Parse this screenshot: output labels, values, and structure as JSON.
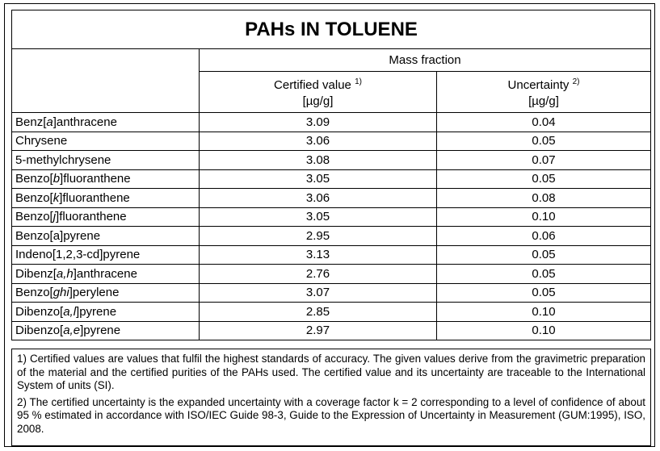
{
  "title": "PAHs IN TOLUENE",
  "header": {
    "group": "Mass fraction",
    "columns": [
      {
        "label": "Certified value",
        "note": "1)",
        "unit": "[µg/g]"
      },
      {
        "label": "Uncertainty",
        "note": "2)",
        "unit": "[µg/g]"
      }
    ]
  },
  "rows": [
    {
      "name": [
        "Benz[",
        "a",
        "]anthracene"
      ],
      "certified": "3.09",
      "uncertainty": "0.04"
    },
    {
      "name": [
        "Chrysene"
      ],
      "certified": "3.06",
      "uncertainty": "0.05"
    },
    {
      "name": [
        "5-methylchrysene"
      ],
      "certified": "3.08",
      "uncertainty": "0.07"
    },
    {
      "name": [
        "Benzo[",
        "b",
        "]fluoranthene"
      ],
      "certified": "3.05",
      "uncertainty": "0.05"
    },
    {
      "name": [
        "Benzo[",
        "k",
        "]fluoranthene"
      ],
      "certified": "3.06",
      "uncertainty": "0.08"
    },
    {
      "name": [
        "Benzo[",
        "j",
        "]fluoranthene"
      ],
      "certified": "3.05",
      "uncertainty": "0.10"
    },
    {
      "name": [
        "Benzo[a]pyrene"
      ],
      "certified": "2.95",
      "uncertainty": "0.06"
    },
    {
      "name": [
        "Indeno[1,2,3-cd]pyrene"
      ],
      "certified": "3.13",
      "uncertainty": "0.05"
    },
    {
      "name": [
        "Dibenz[",
        "a,h",
        "]anthracene"
      ],
      "certified": "2.76",
      "uncertainty": "0.05"
    },
    {
      "name": [
        "Benzo[",
        "ghi",
        "]perylene"
      ],
      "certified": "3.07",
      "uncertainty": "0.05"
    },
    {
      "name": [
        "Dibenzo[",
        "a,l",
        "]pyrene"
      ],
      "certified": "2.85",
      "uncertainty": "0.10"
    },
    {
      "name": [
        "Dibenzo[",
        "a,e",
        "]pyrene"
      ],
      "certified": "2.97",
      "uncertainty": "0.10"
    }
  ],
  "footnotes": [
    "1) Certified values are values that fulfil the highest standards of accuracy. The given values derive from the gravimetric preparation of the material and the certified purities of the PAHs used. The certified value and its uncertainty are traceable to the International System of units (SI).",
    "2) The certified uncertainty is the expanded uncertainty with a coverage factor k = 2 corresponding to a level of confidence of about 95 % estimated in accordance with ISO/IEC Guide 98-3, Guide to the Expression of Uncertainty in Measurement (GUM:1995), ISO, 2008."
  ]
}
